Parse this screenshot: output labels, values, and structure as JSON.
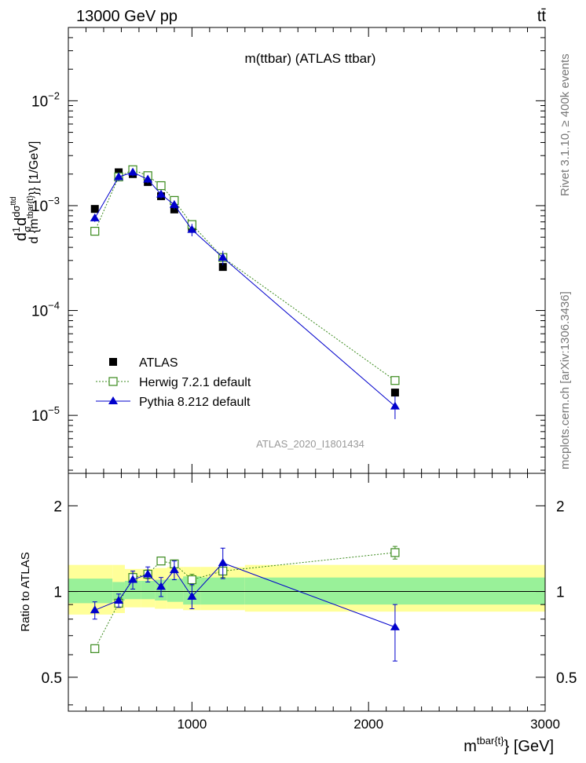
{
  "header": {
    "left": "13000 GeV pp",
    "right": "tt̄"
  },
  "side_labels": {
    "rivet": "Rivet 3.1.10, ≥ 400k events",
    "mcplots": "mcplots.cern.ch [arXiv:1306.3436]"
  },
  "chart_data": [
    {
      "type": "scatter",
      "title": "m(ttbar) (ATLAS ttbar)",
      "watermark": "ATLAS_2020_I1801434",
      "xlabel": "m^{tbar{t}} [GeV]",
      "xlabel_main": "m",
      "xlabel_sup": "tbar{t}",
      "xlabel_tail": "} [GeV]",
      "ylabel": "d(1/σ)dσ^{ttd} / d{m^{tbar{t}}} [1/GeV]",
      "ylabel_parts": {
        "d1": "d",
        "one": "1",
        "sigma": "σ",
        "d2": "d",
        "dsigma": "dσ",
        "sup": "ttd",
        "denom": "d {m",
        "denom_sup": "tbar{t}",
        "tail": "}} [1/GeV]"
      },
      "yscale": "log",
      "xlim": [
        300,
        3000
      ],
      "ylim": [
        2.8e-06,
        0.05
      ],
      "x_ticks": [
        1000,
        2000,
        3000
      ],
      "x_tick_labels": [
        "1000",
        "2000",
        "3000"
      ],
      "y_ticks": [
        1e-05,
        0.0001,
        0.001,
        0.01
      ],
      "y_tick_labels": [
        {
          "base": "10",
          "exp": "−5"
        },
        {
          "base": "10",
          "exp": "−4"
        },
        {
          "base": "10",
          "exp": "−3"
        },
        {
          "base": "10",
          "exp": "−2"
        }
      ],
      "legend_position": "lower-left",
      "series": [
        {
          "name": "ATLAS",
          "color": "#000000",
          "marker": "filled-square",
          "line": "none",
          "x": [
            450,
            585,
            665,
            750,
            825,
            900,
            1000,
            1175,
            2150
          ],
          "y": [
            0.00093,
            0.00208,
            0.002,
            0.00168,
            0.00123,
            0.00092,
            0.00062,
            0.00026,
            1.65e-05
          ]
        },
        {
          "name": "Herwig 7.2.1 default",
          "color": "#3a8a1c",
          "marker": "open-square",
          "line": "dotted",
          "x": [
            450,
            585,
            665,
            750,
            825,
            900,
            1000,
            1175,
            2150
          ],
          "y": [
            0.00057,
            0.00188,
            0.0022,
            0.00193,
            0.00155,
            0.00112,
            0.00066,
            0.00032,
            2.15e-05
          ]
        },
        {
          "name": "Pythia 8.212 default",
          "color": "#0000cc",
          "marker": "filled-triangle",
          "line": "solid",
          "x": [
            450,
            585,
            665,
            750,
            825,
            900,
            1000,
            1175,
            2150
          ],
          "y": [
            0.00076,
            0.00188,
            0.00208,
            0.00178,
            0.00128,
            0.00102,
            0.00059,
            0.00032,
            1.22e-05
          ],
          "err_up": [
            6e-05,
            0.00016,
            0.00018,
            0.00015,
            0.00012,
            0.0001,
            8e-05,
            5e-05,
            3e-06
          ],
          "err_down": [
            6e-05,
            0.00016,
            0.00018,
            0.00015,
            0.00012,
            0.0001,
            8e-05,
            5e-05,
            3e-06
          ]
        }
      ]
    },
    {
      "type": "scatter",
      "ylabel": "Ratio to ATLAS",
      "yscale": "log",
      "xlim": [
        300,
        3000
      ],
      "ylim": [
        0.38,
        2.6
      ],
      "y_ticks": [
        0.5,
        1,
        2
      ],
      "y_tick_labels": [
        "0.5",
        "1",
        "2"
      ],
      "bands": {
        "edges": [
          300,
          550,
          620,
          710,
          790,
          860,
          950,
          1050,
          1300,
          3000
        ],
        "yellow_low": [
          0.83,
          0.84,
          0.88,
          0.88,
          0.87,
          0.87,
          0.86,
          0.86,
          0.85
        ],
        "yellow_high": [
          1.24,
          1.24,
          1.2,
          1.2,
          1.21,
          1.22,
          1.22,
          1.22,
          1.24
        ],
        "green_low": [
          0.91,
          0.93,
          0.94,
          0.94,
          0.93,
          0.92,
          0.9,
          0.9,
          0.9
        ],
        "green_high": [
          1.11,
          1.08,
          1.09,
          1.09,
          1.1,
          1.11,
          1.13,
          1.12,
          1.12
        ]
      },
      "series": [
        {
          "name": "Herwig 7.2.1 default",
          "color": "#3a8a1c",
          "marker": "open-square",
          "line": "dotted",
          "x": [
            450,
            585,
            665,
            750,
            825,
            900,
            1000,
            1175,
            2150
          ],
          "y": [
            0.63,
            0.91,
            1.12,
            1.15,
            1.28,
            1.25,
            1.1,
            1.18,
            1.37
          ],
          "err_up": [
            0.01,
            0.03,
            0.04,
            0.04,
            0.03,
            0.04,
            0.05,
            0.06,
            0.07
          ],
          "err_down": [
            0.01,
            0.03,
            0.04,
            0.04,
            0.03,
            0.04,
            0.05,
            0.06,
            0.07
          ]
        },
        {
          "name": "Pythia 8.212 default",
          "color": "#0000cc",
          "marker": "filled-triangle",
          "line": "solid",
          "x": [
            450,
            585,
            665,
            750,
            825,
            900,
            1000,
            1175,
            2150
          ],
          "y": [
            0.86,
            0.93,
            1.1,
            1.15,
            1.04,
            1.19,
            0.96,
            1.26,
            0.75
          ],
          "err_up": [
            0.06,
            0.05,
            0.08,
            0.07,
            0.08,
            0.09,
            0.1,
            0.16,
            0.15
          ],
          "err_down": [
            0.06,
            0.05,
            0.08,
            0.07,
            0.08,
            0.09,
            0.09,
            0.15,
            0.18
          ]
        }
      ]
    }
  ]
}
